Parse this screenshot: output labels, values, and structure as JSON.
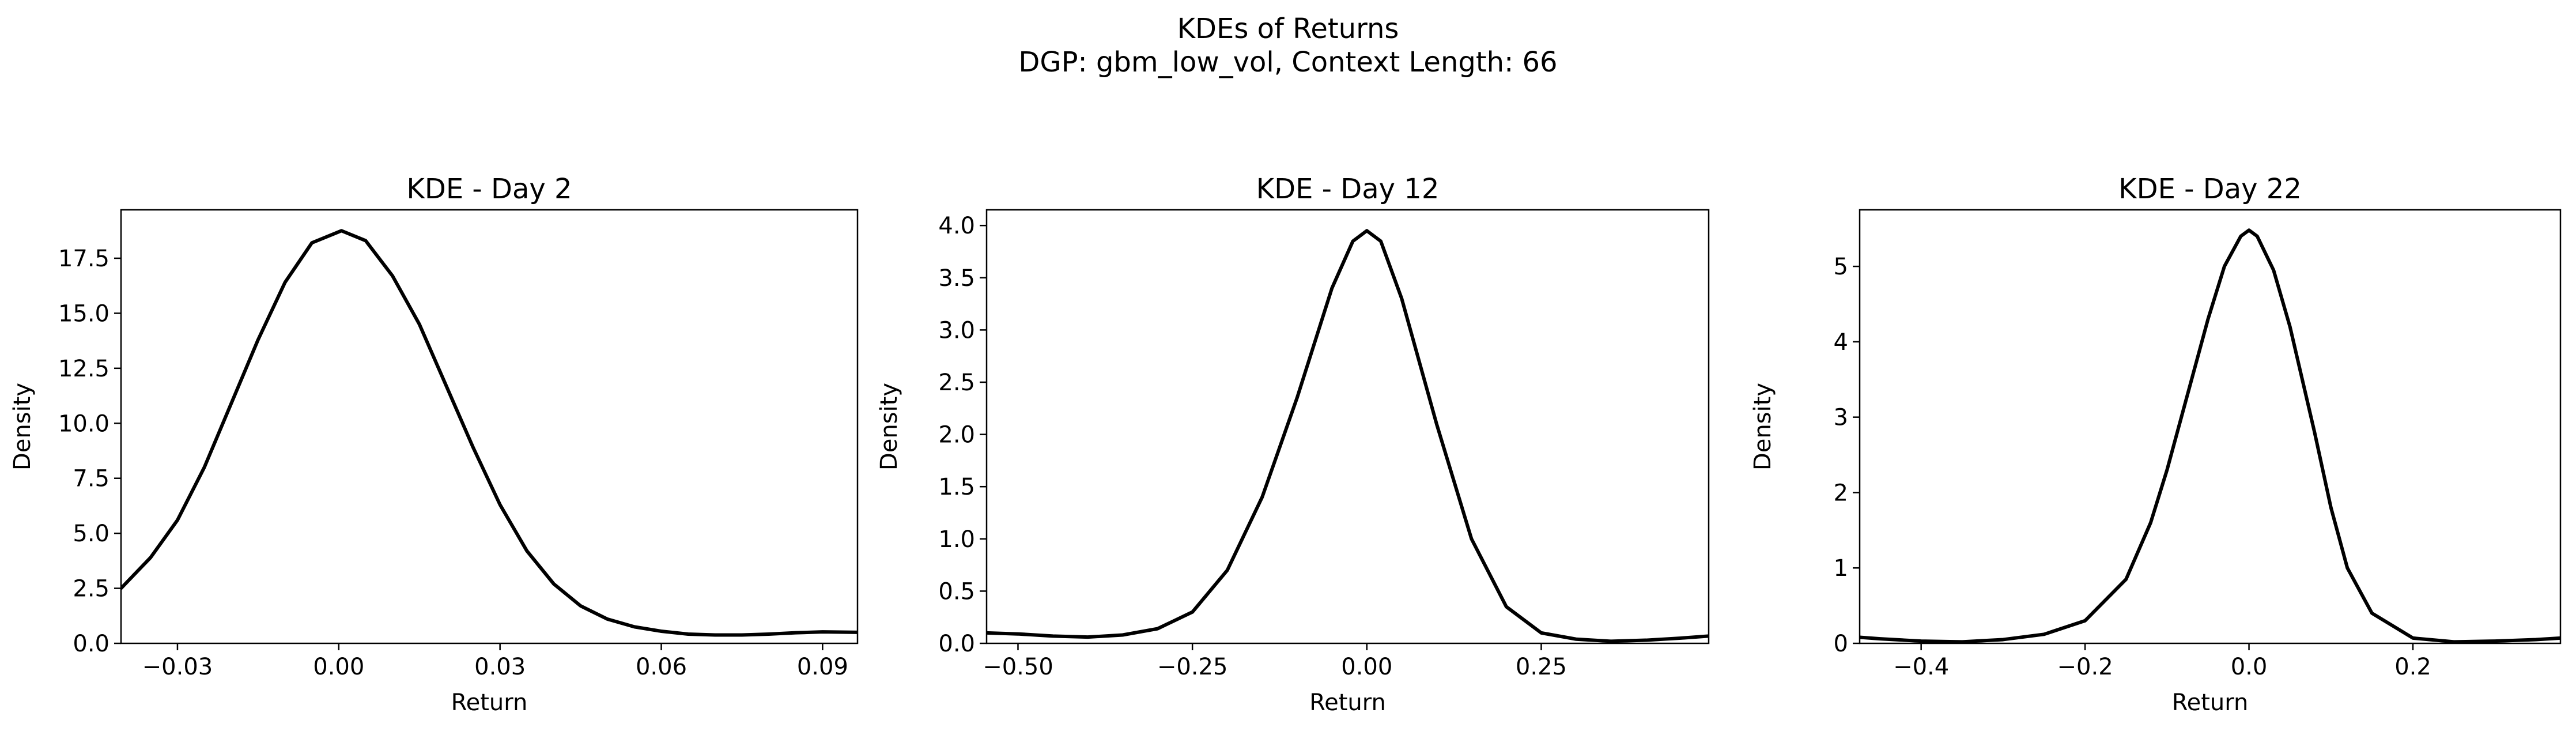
{
  "figure": {
    "title_line1": "KDEs of Returns",
    "title_line2": "DGP: gbm_low_vol, Context Length: 66"
  },
  "colors": {
    "curve": "#000000",
    "axes": "#000000",
    "background": "#ffffff"
  },
  "chart_data": [
    {
      "type": "line",
      "title": "KDE - Day 2",
      "xlabel": "Return",
      "ylabel": "Density",
      "xlim": [
        -0.0405,
        0.0965
      ],
      "ylim": [
        0,
        19.7
      ],
      "xticks": [
        -0.03,
        0.0,
        0.03,
        0.06,
        0.09
      ],
      "xtick_labels": [
        "−0.03",
        "0.00",
        "0.03",
        "0.06",
        "0.09"
      ],
      "yticks": [
        0,
        2.5,
        5,
        7.5,
        10,
        12.5,
        15,
        17.5
      ],
      "ytick_labels": [
        "0.0",
        "2.5",
        "5.0",
        "7.5",
        "10.0",
        "12.5",
        "15.0",
        "17.5"
      ],
      "series": [
        {
          "name": "KDE",
          "x": [
            -0.0405,
            -0.035,
            -0.03,
            -0.025,
            -0.02,
            -0.015,
            -0.01,
            -0.005,
            0.0,
            0.0005,
            0.005,
            0.01,
            0.015,
            0.02,
            0.025,
            0.03,
            0.035,
            0.04,
            0.045,
            0.05,
            0.055,
            0.06,
            0.065,
            0.07,
            0.075,
            0.08,
            0.085,
            0.09,
            0.0965
          ],
          "y": [
            2.5,
            3.9,
            5.6,
            8.0,
            10.9,
            13.8,
            16.4,
            18.2,
            18.7,
            18.75,
            18.3,
            16.7,
            14.5,
            11.7,
            8.9,
            6.3,
            4.2,
            2.7,
            1.7,
            1.1,
            0.75,
            0.55,
            0.42,
            0.38,
            0.38,
            0.42,
            0.48,
            0.52,
            0.5
          ]
        }
      ]
    },
    {
      "type": "line",
      "title": "KDE - Day 12",
      "xlabel": "Return",
      "ylabel": "Density",
      "xlim": [
        -0.545,
        0.49
      ],
      "ylim": [
        0,
        4.15
      ],
      "xticks": [
        -0.5,
        -0.25,
        0.0,
        0.25
      ],
      "xtick_labels": [
        "−0.50",
        "−0.25",
        "0.00",
        "0.25"
      ],
      "yticks": [
        0,
        0.5,
        1,
        1.5,
        2,
        2.5,
        3,
        3.5,
        4
      ],
      "ytick_labels": [
        "0.0",
        "0.5",
        "1.0",
        "1.5",
        "2.0",
        "2.5",
        "3.0",
        "3.5",
        "4.0"
      ],
      "series": [
        {
          "name": "KDE",
          "x": [
            -0.545,
            -0.5,
            -0.45,
            -0.4,
            -0.35,
            -0.3,
            -0.25,
            -0.2,
            -0.15,
            -0.1,
            -0.05,
            -0.02,
            0.0,
            0.02,
            0.05,
            0.1,
            0.15,
            0.2,
            0.25,
            0.3,
            0.35,
            0.4,
            0.45,
            0.49
          ],
          "y": [
            0.1,
            0.09,
            0.07,
            0.06,
            0.08,
            0.14,
            0.3,
            0.7,
            1.4,
            2.35,
            3.4,
            3.85,
            3.95,
            3.85,
            3.3,
            2.1,
            1.0,
            0.35,
            0.1,
            0.04,
            0.02,
            0.03,
            0.05,
            0.07
          ]
        }
      ]
    },
    {
      "type": "line",
      "title": "KDE - Day 22",
      "xlabel": "Return",
      "ylabel": "Density",
      "xlim": [
        -0.475,
        0.38
      ],
      "ylim": [
        0,
        5.75
      ],
      "xticks": [
        -0.4,
        -0.2,
        0.0,
        0.2
      ],
      "xtick_labels": [
        "−0.4",
        "−0.2",
        "0.0",
        "0.2"
      ],
      "yticks": [
        0,
        1,
        2,
        3,
        4,
        5
      ],
      "ytick_labels": [
        "0",
        "1",
        "2",
        "3",
        "4",
        "5"
      ],
      "series": [
        {
          "name": "KDE",
          "x": [
            -0.475,
            -0.45,
            -0.4,
            -0.35,
            -0.3,
            -0.25,
            -0.2,
            -0.15,
            -0.12,
            -0.1,
            -0.08,
            -0.05,
            -0.03,
            -0.01,
            0.0,
            0.01,
            0.03,
            0.05,
            0.08,
            0.1,
            0.12,
            0.15,
            0.2,
            0.25,
            0.3,
            0.35,
            0.38
          ],
          "y": [
            0.08,
            0.06,
            0.03,
            0.02,
            0.05,
            0.12,
            0.3,
            0.85,
            1.6,
            2.3,
            3.1,
            4.3,
            5.0,
            5.4,
            5.48,
            5.4,
            4.95,
            4.2,
            2.8,
            1.8,
            1.0,
            0.4,
            0.07,
            0.02,
            0.03,
            0.05,
            0.07
          ]
        }
      ]
    }
  ]
}
